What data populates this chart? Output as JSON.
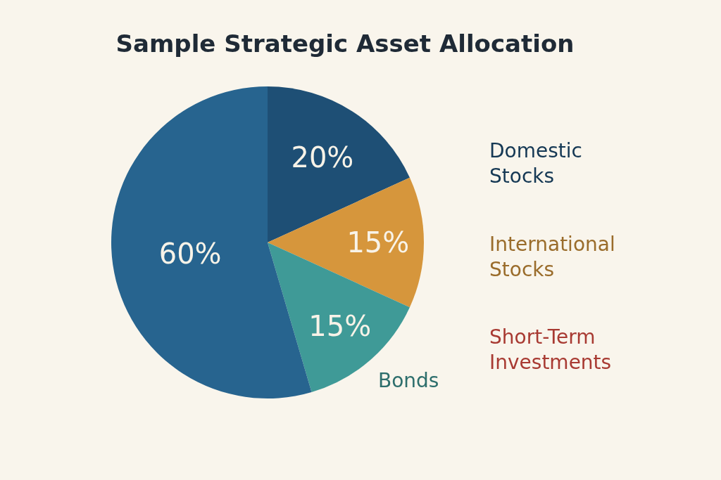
{
  "chart_data": {
    "type": "pie",
    "title": "Sample Strategic Asset Allocation",
    "categories": [
      "Domestic Stocks",
      "International Stocks",
      "Bonds",
      null
    ],
    "values": [
      20,
      15,
      15,
      60
    ],
    "colors": [
      "#1e4f75",
      "#d6963c",
      "#3f9a97",
      "#27648f"
    ],
    "value_labels": [
      "20%",
      "15%",
      "15%",
      "60%"
    ],
    "annotations": [
      "Short-Term Investments"
    ]
  }
}
